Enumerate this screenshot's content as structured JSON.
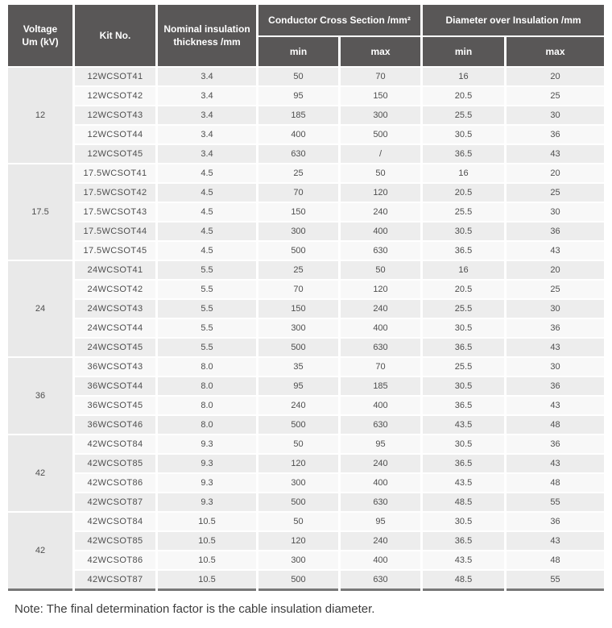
{
  "table": {
    "headers": {
      "voltage": "Voltage\nUm (kV)",
      "kit_no": "Kit No.",
      "nominal_thickness": "Nominal insulation\nthickness /mm",
      "conductor_group": "Conductor Cross Section /mm²",
      "diameter_group": "Diameter over Insulation /mm",
      "min": "min",
      "max": "max"
    },
    "sections": [
      {
        "voltage": "12",
        "rows": [
          {
            "kit": "12WCSOT41",
            "thickness": "3.4",
            "ccs_min": "50",
            "ccs_max": "70",
            "doi_min": "16",
            "doi_max": "20"
          },
          {
            "kit": "12WCSOT42",
            "thickness": "3.4",
            "ccs_min": "95",
            "ccs_max": "150",
            "doi_min": "20.5",
            "doi_max": "25"
          },
          {
            "kit": "12WCSOT43",
            "thickness": "3.4",
            "ccs_min": "185",
            "ccs_max": "300",
            "doi_min": "25.5",
            "doi_max": "30"
          },
          {
            "kit": "12WCSOT44",
            "thickness": "3.4",
            "ccs_min": "400",
            "ccs_max": "500",
            "doi_min": "30.5",
            "doi_max": "36"
          },
          {
            "kit": "12WCSOT45",
            "thickness": "3.4",
            "ccs_min": "630",
            "ccs_max": "/",
            "doi_min": "36.5",
            "doi_max": "43"
          }
        ]
      },
      {
        "voltage": "17.5",
        "rows": [
          {
            "kit": "17.5WCSOT41",
            "thickness": "4.5",
            "ccs_min": "25",
            "ccs_max": "50",
            "doi_min": "16",
            "doi_max": "20"
          },
          {
            "kit": "17.5WCSOT42",
            "thickness": "4.5",
            "ccs_min": "70",
            "ccs_max": "120",
            "doi_min": "20.5",
            "doi_max": "25"
          },
          {
            "kit": "17.5WCSOT43",
            "thickness": "4.5",
            "ccs_min": "150",
            "ccs_max": "240",
            "doi_min": "25.5",
            "doi_max": "30"
          },
          {
            "kit": "17.5WCSOT44",
            "thickness": "4.5",
            "ccs_min": "300",
            "ccs_max": "400",
            "doi_min": "30.5",
            "doi_max": "36"
          },
          {
            "kit": "17.5WCSOT45",
            "thickness": "4.5",
            "ccs_min": "500",
            "ccs_max": "630",
            "doi_min": "36.5",
            "doi_max": "43"
          }
        ]
      },
      {
        "voltage": "24",
        "rows": [
          {
            "kit": "24WCSOT41",
            "thickness": "5.5",
            "ccs_min": "25",
            "ccs_max": "50",
            "doi_min": "16",
            "doi_max": "20"
          },
          {
            "kit": "24WCSOT42",
            "thickness": "5.5",
            "ccs_min": "70",
            "ccs_max": "120",
            "doi_min": "20.5",
            "doi_max": "25"
          },
          {
            "kit": "24WCSOT43",
            "thickness": "5.5",
            "ccs_min": "150",
            "ccs_max": "240",
            "doi_min": "25.5",
            "doi_max": "30"
          },
          {
            "kit": "24WCSOT44",
            "thickness": "5.5",
            "ccs_min": "300",
            "ccs_max": "400",
            "doi_min": "30.5",
            "doi_max": "36"
          },
          {
            "kit": "24WCSOT45",
            "thickness": "5.5",
            "ccs_min": "500",
            "ccs_max": "630",
            "doi_min": "36.5",
            "doi_max": "43"
          }
        ]
      },
      {
        "voltage": "36",
        "rows": [
          {
            "kit": "36WCSOT43",
            "thickness": "8.0",
            "ccs_min": "35",
            "ccs_max": "70",
            "doi_min": "25.5",
            "doi_max": "30"
          },
          {
            "kit": "36WCSOT44",
            "thickness": "8.0",
            "ccs_min": "95",
            "ccs_max": "185",
            "doi_min": "30.5",
            "doi_max": "36"
          },
          {
            "kit": "36WCSOT45",
            "thickness": "8.0",
            "ccs_min": "240",
            "ccs_max": "400",
            "doi_min": "36.5",
            "doi_max": "43"
          },
          {
            "kit": "36WCSOT46",
            "thickness": "8.0",
            "ccs_min": "500",
            "ccs_max": "630",
            "doi_min": "43.5",
            "doi_max": "48"
          }
        ]
      },
      {
        "voltage": "42",
        "rows": [
          {
            "kit": "42WCSOT84",
            "thickness": "9.3",
            "ccs_min": "50",
            "ccs_max": "95",
            "doi_min": "30.5",
            "doi_max": "36"
          },
          {
            "kit": "42WCSOT85",
            "thickness": "9.3",
            "ccs_min": "120",
            "ccs_max": "240",
            "doi_min": "36.5",
            "doi_max": "43"
          },
          {
            "kit": "42WCSOT86",
            "thickness": "9.3",
            "ccs_min": "300",
            "ccs_max": "400",
            "doi_min": "43.5",
            "doi_max": "48"
          },
          {
            "kit": "42WCSOT87",
            "thickness": "9.3",
            "ccs_min": "500",
            "ccs_max": "630",
            "doi_min": "48.5",
            "doi_max": "55"
          }
        ]
      },
      {
        "voltage": "42",
        "rows": [
          {
            "kit": "42WCSOT84",
            "thickness": "10.5",
            "ccs_min": "50",
            "ccs_max": "95",
            "doi_min": "30.5",
            "doi_max": "36"
          },
          {
            "kit": "42WCSOT85",
            "thickness": "10.5",
            "ccs_min": "120",
            "ccs_max": "240",
            "doi_min": "36.5",
            "doi_max": "43"
          },
          {
            "kit": "42WCSOT86",
            "thickness": "10.5",
            "ccs_min": "300",
            "ccs_max": "400",
            "doi_min": "43.5",
            "doi_max": "48"
          },
          {
            "kit": "42WCSOT87",
            "thickness": "10.5",
            "ccs_min": "500",
            "ccs_max": "630",
            "doi_min": "48.5",
            "doi_max": "55"
          }
        ]
      }
    ]
  },
  "note": "Note: The final determination factor is the cable insulation diameter.",
  "colors": {
    "header_bg": "#595757",
    "header_text": "#ffffff",
    "stripe_gray": "#ededed",
    "stripe_light": "#f8f8f8",
    "voltage_cell_bg": "#e9e9e9",
    "body_text": "#4e4e4e",
    "bottom_rule": "#787878"
  }
}
